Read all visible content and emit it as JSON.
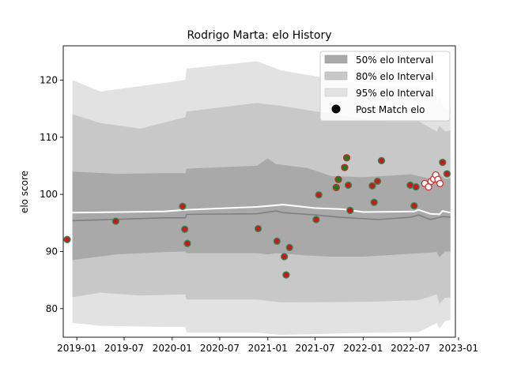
{
  "chart_data": {
    "type": "area",
    "title": "Rodrigo Marta: elo History",
    "xlabel": "",
    "ylabel": "elo score",
    "xlim": [
      "2018-11-10",
      "2022-12-20"
    ],
    "ylim": [
      75,
      126
    ],
    "x_ticks": [
      "2019-01",
      "2019-07",
      "2020-01",
      "2020-07",
      "2021-01",
      "2021-07",
      "2022-01",
      "2022-07",
      "2023-01"
    ],
    "y_ticks": [
      80,
      90,
      100,
      110,
      120
    ],
    "grid": false,
    "legend_position": "top-right",
    "legend": [
      {
        "label": "50% elo Interval",
        "kind": "band",
        "color": "#a9a9a9"
      },
      {
        "label": "80% elo Interval",
        "kind": "band",
        "color": "#c8c8c8"
      },
      {
        "label": "95% elo Interval",
        "kind": "band",
        "color": "#e2e2e2"
      },
      {
        "label": "Post Match elo",
        "kind": "marker",
        "color": "#000000"
      }
    ],
    "bands": [
      {
        "name": "95% elo Interval",
        "color": "#e2e2e2",
        "points": [
          {
            "x": "2018-12-15",
            "low": 77.5,
            "high": 120.0
          },
          {
            "x": "2019-04-01",
            "low": 77.0,
            "high": 118.0
          },
          {
            "x": "2019-12-01",
            "low": 76.8,
            "high": 119.5
          },
          {
            "x": "2020-02-20",
            "low": 76.8,
            "high": 120.0
          },
          {
            "x": "2020-02-25",
            "low": 75.8,
            "high": 122.0
          },
          {
            "x": "2020-11-20",
            "low": 75.8,
            "high": 123.3
          },
          {
            "x": "2021-02-20",
            "low": 75.4,
            "high": 121.7
          },
          {
            "x": "2022-02-01",
            "low": 75.8,
            "high": 119.0
          },
          {
            "x": "2022-08-01",
            "low": 75.9,
            "high": 119.0
          },
          {
            "x": "2022-10-10",
            "low": 77.5,
            "high": 116.0
          },
          {
            "x": "2022-10-20",
            "low": 76.5,
            "high": 117.0
          },
          {
            "x": "2022-11-10",
            "low": 77.8,
            "high": 115.0
          },
          {
            "x": "2022-12-01",
            "low": 78.0,
            "high": 115.0
          }
        ]
      },
      {
        "name": "80% elo Interval",
        "color": "#c8c8c8",
        "points": [
          {
            "x": "2018-12-15",
            "low": 82.0,
            "high": 114.0
          },
          {
            "x": "2019-04-01",
            "low": 82.8,
            "high": 112.5
          },
          {
            "x": "2019-09-01",
            "low": 82.3,
            "high": 111.5
          },
          {
            "x": "2020-02-20",
            "low": 82.5,
            "high": 113.5
          },
          {
            "x": "2020-02-25",
            "low": 81.6,
            "high": 114.5
          },
          {
            "x": "2020-11-20",
            "low": 81.6,
            "high": 116.0
          },
          {
            "x": "2021-02-20",
            "low": 81.1,
            "high": 115.5
          },
          {
            "x": "2022-02-01",
            "low": 81.2,
            "high": 113.0
          },
          {
            "x": "2022-08-01",
            "low": 81.5,
            "high": 112.8
          },
          {
            "x": "2022-10-10",
            "low": 82.5,
            "high": 111.0
          },
          {
            "x": "2022-10-20",
            "low": 80.8,
            "high": 112.0
          },
          {
            "x": "2022-11-10",
            "low": 81.9,
            "high": 111.0
          },
          {
            "x": "2022-12-01",
            "low": 82.0,
            "high": 111.2
          }
        ]
      },
      {
        "name": "50% elo Interval",
        "color": "#a9a9a9",
        "points": [
          {
            "x": "2018-12-15",
            "low": 88.5,
            "high": 104.0
          },
          {
            "x": "2019-06-01",
            "low": 89.5,
            "high": 103.6
          },
          {
            "x": "2019-12-01",
            "low": 89.9,
            "high": 103.7
          },
          {
            "x": "2020-02-20",
            "low": 90.0,
            "high": 103.7
          },
          {
            "x": "2020-02-25",
            "low": 89.7,
            "high": 104.5
          },
          {
            "x": "2020-11-20",
            "low": 89.7,
            "high": 105.0
          },
          {
            "x": "2021-01-01",
            "low": 89.5,
            "high": 106.3
          },
          {
            "x": "2021-02-01",
            "low": 89.7,
            "high": 105.3
          },
          {
            "x": "2021-06-01",
            "low": 89.3,
            "high": 104.6
          },
          {
            "x": "2021-09-01",
            "low": 89.1,
            "high": 103.2
          },
          {
            "x": "2022-01-01",
            "low": 89.1,
            "high": 103.0
          },
          {
            "x": "2022-07-01",
            "low": 89.6,
            "high": 103.5
          },
          {
            "x": "2022-10-10",
            "low": 89.9,
            "high": 102.5
          },
          {
            "x": "2022-10-20",
            "low": 89.0,
            "high": 103.5
          },
          {
            "x": "2022-11-10",
            "low": 90.0,
            "high": 102.7
          },
          {
            "x": "2022-12-01",
            "low": 90.0,
            "high": 102.8
          }
        ]
      }
    ],
    "series": [
      {
        "kind": "line",
        "color": "#ffffff",
        "points": [
          {
            "x": "2018-12-15",
            "y": 96.8
          },
          {
            "x": "2019-12-01",
            "y": 97.0
          },
          {
            "x": "2020-02-20",
            "y": 97.3
          },
          {
            "x": "2020-11-20",
            "y": 97.8
          },
          {
            "x": "2021-03-01",
            "y": 98.2
          },
          {
            "x": "2021-07-01",
            "y": 97.6
          },
          {
            "x": "2021-10-15",
            "y": 97.4
          },
          {
            "x": "2022-01-01",
            "y": 96.9
          },
          {
            "x": "2022-07-15",
            "y": 97.0
          },
          {
            "x": "2022-08-01",
            "y": 97.3
          },
          {
            "x": "2022-09-15",
            "y": 96.6
          },
          {
            "x": "2022-10-20",
            "y": 96.5
          },
          {
            "x": "2022-11-01",
            "y": 97.1
          },
          {
            "x": "2022-12-01",
            "y": 96.8
          }
        ]
      },
      {
        "kind": "line",
        "color": "#808080",
        "points": [
          {
            "x": "2018-12-15",
            "y": 95.4
          },
          {
            "x": "2019-12-01",
            "y": 95.9
          },
          {
            "x": "2020-02-20",
            "y": 95.9
          },
          {
            "x": "2020-02-25",
            "y": 96.5
          },
          {
            "x": "2020-11-20",
            "y": 96.6
          },
          {
            "x": "2021-02-01",
            "y": 97.1
          },
          {
            "x": "2021-03-01",
            "y": 96.8
          },
          {
            "x": "2021-07-01",
            "y": 96.4
          },
          {
            "x": "2021-10-01",
            "y": 96.0
          },
          {
            "x": "2022-03-01",
            "y": 95.6
          },
          {
            "x": "2022-07-01",
            "y": 96.0
          },
          {
            "x": "2022-08-01",
            "y": 96.4
          },
          {
            "x": "2022-09-15",
            "y": 95.6
          },
          {
            "x": "2022-11-01",
            "y": 96.1
          },
          {
            "x": "2022-12-01",
            "y": 96.0
          }
        ]
      },
      {
        "name": "Post Match elo",
        "kind": "scatter",
        "points": [
          {
            "x": "2018-11-25",
            "y": 92.1,
            "style": "red-on-green"
          },
          {
            "x": "2019-05-30",
            "y": 95.3,
            "style": "red-on-green"
          },
          {
            "x": "2020-02-10",
            "y": 97.9,
            "style": "red-on-green"
          },
          {
            "x": "2020-02-18",
            "y": 93.9,
            "style": "red-on-green"
          },
          {
            "x": "2020-02-28",
            "y": 91.4,
            "style": "red-on-green"
          },
          {
            "x": "2020-11-25",
            "y": 94.0,
            "style": "red-on-green"
          },
          {
            "x": "2021-02-05",
            "y": 91.8,
            "style": "red-on-green"
          },
          {
            "x": "2021-03-05",
            "y": 89.1,
            "style": "red-on-green"
          },
          {
            "x": "2021-03-12",
            "y": 85.9,
            "style": "red-on-green"
          },
          {
            "x": "2021-03-25",
            "y": 90.7,
            "style": "red-on-green"
          },
          {
            "x": "2021-07-05",
            "y": 95.6,
            "style": "red-on-green"
          },
          {
            "x": "2021-07-15",
            "y": 99.9,
            "style": "red-on-green"
          },
          {
            "x": "2021-09-20",
            "y": 101.2,
            "style": "green-on-red"
          },
          {
            "x": "2021-09-28",
            "y": 102.6,
            "style": "green-on-red"
          },
          {
            "x": "2021-10-22",
            "y": 104.7,
            "style": "green-on-red"
          },
          {
            "x": "2021-10-30",
            "y": 106.4,
            "style": "green-on-red"
          },
          {
            "x": "2021-11-05",
            "y": 101.6,
            "style": "red-on-green"
          },
          {
            "x": "2021-11-12",
            "y": 97.2,
            "style": "red-on-green"
          },
          {
            "x": "2022-02-05",
            "y": 101.5,
            "style": "red-on-green"
          },
          {
            "x": "2022-02-12",
            "y": 98.6,
            "style": "red-on-green"
          },
          {
            "x": "2022-02-25",
            "y": 102.3,
            "style": "red-on-green"
          },
          {
            "x": "2022-03-12",
            "y": 105.9,
            "style": "red-on-green"
          },
          {
            "x": "2022-06-30",
            "y": 101.6,
            "style": "red-on-green"
          },
          {
            "x": "2022-07-15",
            "y": 98.0,
            "style": "red-on-green"
          },
          {
            "x": "2022-07-22",
            "y": 101.3,
            "style": "red-on-green"
          },
          {
            "x": "2022-08-25",
            "y": 101.9,
            "style": "white-on-red"
          },
          {
            "x": "2022-09-08",
            "y": 101.3,
            "style": "white-on-red"
          },
          {
            "x": "2022-09-18",
            "y": 102.3,
            "style": "white-on-red"
          },
          {
            "x": "2022-09-28",
            "y": 102.7,
            "style": "white-on-red"
          },
          {
            "x": "2022-10-06",
            "y": 103.4,
            "style": "white-on-red"
          },
          {
            "x": "2022-10-14",
            "y": 102.6,
            "style": "white-on-red"
          },
          {
            "x": "2022-10-22",
            "y": 101.9,
            "style": "white-on-red"
          },
          {
            "x": "2022-11-01",
            "y": 105.6,
            "style": "red-on-green"
          },
          {
            "x": "2022-11-18",
            "y": 103.6,
            "style": "red-on-green"
          }
        ]
      }
    ]
  }
}
